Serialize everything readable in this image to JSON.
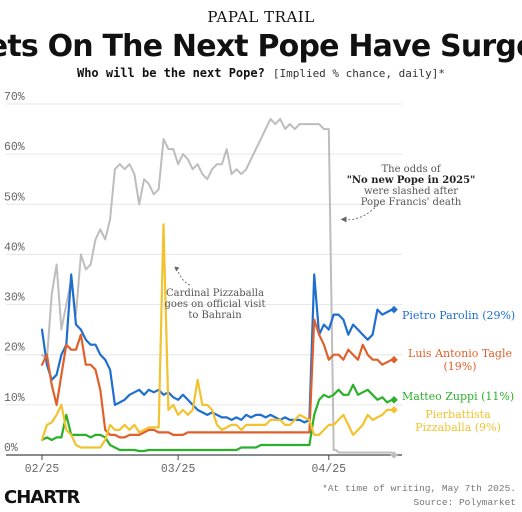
{
  "kicker": "PAPAL TRAIL",
  "headline": "Bets On The Next Pope Have Surged",
  "subtitle": "Who will be the next Pope?",
  "subtitle_note": "[Implied % chance, daily]*",
  "footnote": "*At time of writing, May 7th 2025.",
  "source": "Source: Polymarket",
  "brand": "CHARTR",
  "colors": {
    "no_pope": "#bdbdbd",
    "parolin": "#1f6fd1",
    "tagle": "#e0602b",
    "zuppi": "#2bb02b",
    "pizzaballa": "#f2c230",
    "grid": "#e6e6e6",
    "axis": "#444444"
  },
  "chart_data": {
    "type": "line",
    "ylabel": "",
    "xlabel": "",
    "ylim": [
      0,
      70
    ],
    "y_ticks": [
      "0%",
      "10%",
      "20%",
      "30%",
      "40%",
      "50%",
      "60%",
      "70%"
    ],
    "y_tick_values": [
      0,
      10,
      20,
      30,
      40,
      50,
      60,
      70
    ],
    "x_tick_labels": [
      "02/25",
      "03/25",
      "04/25"
    ],
    "x_tick_days": [
      0,
      28,
      59
    ],
    "x_range_days": [
      0,
      72
    ],
    "series": [
      {
        "key": "no_pope",
        "days": [
          0,
          1,
          2,
          3,
          4,
          5,
          6,
          7,
          8,
          9,
          10,
          11,
          12,
          13,
          14,
          15,
          16,
          17,
          18,
          19,
          20,
          21,
          22,
          23,
          24,
          25,
          26,
          27,
          28,
          29,
          30,
          31,
          32,
          33,
          34,
          35,
          36,
          37,
          38,
          39,
          40,
          41,
          42,
          43,
          44,
          45,
          46,
          47,
          48,
          49,
          50,
          51,
          52,
          53,
          54,
          55,
          56,
          57,
          58,
          59,
          60,
          60.5,
          61,
          62,
          63,
          64,
          65,
          66,
          67,
          68,
          69,
          70,
          71,
          72
        ],
        "values": [
          20,
          19,
          32,
          38,
          25,
          30,
          35,
          28,
          40,
          37,
          38,
          43,
          45,
          43,
          47,
          57,
          58,
          57,
          58,
          56,
          50,
          55,
          54,
          52,
          53,
          63,
          61,
          61,
          58,
          60,
          59,
          57,
          58,
          56,
          55,
          57,
          58,
          58,
          61,
          56,
          57,
          56,
          57,
          59,
          61,
          63,
          65,
          67,
          66,
          67,
          65,
          66,
          65,
          66,
          66,
          66,
          66,
          66,
          65,
          65,
          1,
          1,
          0.5,
          0.5,
          0.5,
          0.5,
          0.5,
          0.5,
          0.5,
          0.5,
          0.5,
          0.5,
          0.5,
          0.5
        ]
      },
      {
        "key": "parolin",
        "name": "Pietro Parolin (29%)",
        "days": [
          0,
          1,
          2,
          3,
          4,
          5,
          6,
          7,
          8,
          9,
          10,
          11,
          12,
          13,
          14,
          15,
          16,
          17,
          18,
          19,
          20,
          21,
          22,
          23,
          24,
          25,
          26,
          27,
          28,
          29,
          30,
          31,
          32,
          33,
          34,
          35,
          36,
          37,
          38,
          39,
          40,
          41,
          42,
          43,
          44,
          45,
          46,
          47,
          48,
          49,
          50,
          51,
          52,
          53,
          54,
          55,
          56,
          57,
          58,
          59,
          60,
          61,
          62,
          63,
          64,
          65,
          66,
          67,
          68,
          69,
          70,
          71,
          72
        ],
        "values": [
          25,
          18,
          15,
          16,
          20,
          22,
          36,
          26,
          25,
          23,
          22,
          22,
          20,
          19,
          17,
          10,
          10.5,
          11,
          12,
          12.5,
          13,
          12,
          13,
          12.5,
          13,
          12,
          12.5,
          11.5,
          11,
          12,
          11,
          10,
          9,
          8.5,
          8,
          8.5,
          8,
          7.5,
          7.5,
          7,
          7.5,
          7,
          8,
          7.5,
          8,
          8,
          7.5,
          8,
          7.5,
          7,
          7.5,
          7,
          7,
          7,
          6.5,
          7,
          36,
          24,
          26,
          25,
          28,
          28,
          27,
          24,
          26,
          25,
          24,
          23,
          24,
          29,
          28,
          28.5,
          29
        ]
      },
      {
        "key": "tagle",
        "name": "Luis Antonio Tagle (19%)",
        "days": [
          0,
          1,
          2,
          3,
          4,
          5,
          6,
          7,
          8,
          9,
          10,
          11,
          12,
          13,
          14,
          15,
          16,
          17,
          18,
          19,
          20,
          21,
          22,
          23,
          24,
          25,
          26,
          27,
          28,
          29,
          30,
          31,
          32,
          33,
          34,
          35,
          36,
          37,
          38,
          39,
          40,
          41,
          42,
          43,
          44,
          45,
          46,
          47,
          48,
          49,
          50,
          51,
          52,
          53,
          54,
          55,
          56,
          57,
          58,
          59,
          60,
          61,
          62,
          63,
          64,
          65,
          66,
          67,
          68,
          69,
          70,
          71,
          72
        ],
        "values": [
          18,
          20,
          14,
          10,
          16,
          22,
          21,
          21,
          24,
          18,
          18,
          17,
          13,
          5,
          4,
          4,
          3.5,
          3.5,
          4,
          4,
          4,
          4.5,
          5,
          5,
          4.5,
          4.5,
          4.5,
          4,
          4,
          4,
          4.5,
          4.5,
          4.5,
          4.5,
          4.5,
          4.5,
          4.5,
          4.5,
          4.5,
          4.5,
          4.5,
          4.5,
          4.5,
          4.5,
          4.5,
          4.5,
          4.5,
          4.5,
          4.5,
          4.5,
          4.5,
          4.5,
          4.5,
          4.5,
          4.5,
          4.5,
          27,
          24,
          22,
          19,
          20,
          20,
          19,
          21,
          20,
          19,
          22,
          20,
          19,
          19,
          18,
          18.5,
          19
        ]
      },
      {
        "key": "zuppi",
        "name": "Matteo Zuppi (11%)",
        "days": [
          0,
          1,
          2,
          3,
          4,
          5,
          6,
          7,
          8,
          9,
          10,
          11,
          12,
          13,
          14,
          15,
          16,
          17,
          18,
          19,
          20,
          21,
          22,
          23,
          24,
          25,
          26,
          27,
          28,
          29,
          30,
          31,
          32,
          33,
          34,
          35,
          36,
          37,
          38,
          39,
          40,
          41,
          42,
          43,
          44,
          45,
          46,
          47,
          48,
          49,
          50,
          51,
          52,
          53,
          54,
          55,
          56,
          57,
          58,
          59,
          60,
          61,
          62,
          63,
          64,
          65,
          66,
          67,
          68,
          69,
          70,
          71,
          72
        ],
        "values": [
          3,
          3.5,
          3,
          3.5,
          3.5,
          8,
          4,
          4,
          4,
          4,
          3.5,
          4,
          4,
          3.5,
          2,
          1.5,
          1,
          1,
          1,
          1,
          0.8,
          0.8,
          1,
          1,
          1,
          1,
          1,
          1,
          1,
          1,
          1,
          1,
          1,
          1,
          1,
          1,
          1,
          1,
          1,
          1,
          1,
          1.5,
          1.5,
          1.5,
          1.5,
          2,
          2,
          2,
          2,
          2,
          2,
          2,
          2,
          2,
          2,
          2,
          8,
          11,
          12,
          11.5,
          12,
          13,
          12,
          12,
          14,
          12,
          12.5,
          13,
          12,
          11,
          11.5,
          10.5,
          11
        ]
      },
      {
        "key": "pizzaballa",
        "name": "Pierbattista Pizzaballa (9%)",
        "days": [
          0,
          1,
          2,
          3,
          4,
          5,
          6,
          7,
          8,
          9,
          10,
          11,
          12,
          13,
          14,
          15,
          16,
          17,
          18,
          19,
          20,
          21,
          22,
          23,
          24,
          25,
          26,
          27,
          28,
          29,
          30,
          31,
          32,
          33,
          34,
          35,
          36,
          37,
          38,
          39,
          40,
          41,
          42,
          43,
          44,
          45,
          46,
          47,
          48,
          49,
          50,
          51,
          52,
          53,
          54,
          55,
          56,
          57,
          58,
          59,
          60,
          61,
          62,
          63,
          64,
          65,
          66,
          67,
          68,
          69,
          70,
          71,
          72
        ],
        "values": [
          3,
          6,
          6.5,
          8,
          10,
          5,
          4,
          2,
          1.5,
          1.5,
          1.5,
          1.5,
          1.5,
          3,
          6,
          5,
          5,
          6,
          5,
          6,
          4.5,
          5,
          5.5,
          5.5,
          5.5,
          46,
          9,
          10,
          8,
          9,
          8,
          9,
          15,
          10,
          10,
          9,
          6,
          5,
          5.5,
          6,
          6,
          5,
          6,
          6,
          6,
          6,
          6,
          7,
          7,
          7,
          6,
          6,
          7,
          8,
          7.5,
          7,
          4,
          4,
          5,
          6,
          6,
          7,
          8,
          6,
          4,
          5,
          6,
          8,
          7,
          7.5,
          8,
          9,
          9
        ]
      }
    ],
    "end_markers": [
      {
        "key": "parolin",
        "value": 29
      },
      {
        "key": "tagle",
        "value": 19
      },
      {
        "key": "zuppi",
        "value": 11
      },
      {
        "key": "pizzaballa",
        "value": 9
      },
      {
        "key": "no_pope",
        "value": 0
      }
    ],
    "legend_labels": [
      {
        "key": "parolin",
        "lines": [
          "Pietro Parolin (29%)"
        ]
      },
      {
        "key": "tagle",
        "lines": [
          "Luis Antonio Tagle",
          "(19%)"
        ]
      },
      {
        "key": "zuppi",
        "lines": [
          "Matteo Zuppi (11%)"
        ]
      },
      {
        "key": "pizzaballa",
        "lines": [
          "Pierbattista",
          "Pizzaballa (9%)"
        ]
      }
    ],
    "annotations": [
      {
        "key": "pizzaballa_visit",
        "lines": [
          "Cardinal Pizzaballa",
          "goes on official visit",
          "to Bahrain"
        ],
        "point_day": 27,
        "point_value": 37
      },
      {
        "key": "no_pope_odds",
        "lines_pre": [
          "The odds of"
        ],
        "bold": "\"No new Pope in 2025\"",
        "lines_post": [
          "were slashed after",
          "Pope Francis' death"
        ],
        "point_day": 61,
        "point_value": 47
      }
    ]
  }
}
